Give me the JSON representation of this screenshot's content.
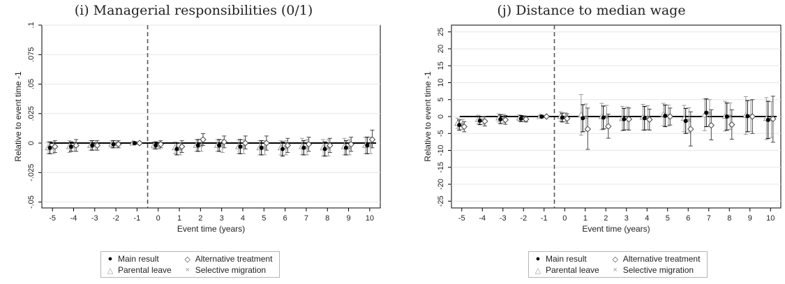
{
  "legend": {
    "items": [
      {
        "label": "Main result",
        "symbol": "●",
        "color": "#000000"
      },
      {
        "label": "Alternative treatment",
        "symbol": "◇",
        "color": "#444444"
      },
      {
        "label": "Parental leave",
        "symbol": "△",
        "color": "#9a9a9a"
      },
      {
        "label": "Selective migration",
        "symbol": "×",
        "color": "#9a9a9a"
      }
    ]
  },
  "chart_data": [
    {
      "type": "scatter",
      "title": "(i) Managerial responsibilities (0/1)",
      "xlabel": "Event time (years)",
      "ylabel": "Relative to event time -1",
      "x": [
        -5,
        -4,
        -3,
        -2,
        -1,
        0,
        1,
        2,
        3,
        4,
        5,
        6,
        7,
        8,
        9,
        10
      ],
      "xticks": [
        "-5",
        "-4",
        "-3",
        "-2",
        "-1",
        "0",
        "1",
        "2",
        "3",
        "4",
        "5",
        "6",
        "7",
        "8",
        "9",
        "10"
      ],
      "ylim": [
        -0.055,
        0.1
      ],
      "yticks": [
        {
          "v": -0.05,
          "label": "-.05"
        },
        {
          "v": -0.025,
          "label": "-.025"
        },
        {
          "v": 0,
          "label": "0"
        },
        {
          "v": 0.025,
          "label": ".025"
        },
        {
          "v": 0.05,
          "label": ".05"
        },
        {
          "v": 0.075,
          "label": ".075"
        },
        {
          "v": 0.1,
          "label": ".1"
        }
      ],
      "grid": true,
      "event_line_x": -0.5,
      "series": [
        {
          "name": "Main result",
          "values": [
            -0.004,
            -0.003,
            -0.002,
            -0.001,
            0,
            -0.002,
            -0.005,
            -0.002,
            -0.002,
            -0.003,
            -0.004,
            -0.005,
            -0.004,
            -0.005,
            -0.004,
            -0.002
          ],
          "ci_low": [
            -0.009,
            -0.007,
            -0.006,
            -0.004,
            -0.001,
            -0.005,
            -0.01,
            -0.007,
            -0.007,
            -0.009,
            -0.01,
            -0.011,
            -0.01,
            -0.011,
            -0.01,
            -0.009
          ],
          "ci_high": [
            0.001,
            0.001,
            0.002,
            0.002,
            0.001,
            0.001,
            0,
            0.003,
            0.003,
            0.003,
            0.002,
            0.001,
            0.002,
            0.001,
            0.002,
            0.005
          ]
        },
        {
          "name": "Alternative treatment",
          "values": [
            -0.003,
            -0.002,
            -0.002,
            -0.001,
            0,
            -0.001,
            -0.003,
            0.003,
            0.001,
            0,
            0,
            -0.002,
            -0.001,
            -0.002,
            -0.001,
            0.003
          ],
          "ci_low": [
            -0.008,
            -0.007,
            -0.006,
            -0.004,
            -0.001,
            -0.004,
            -0.008,
            -0.002,
            -0.004,
            -0.005,
            -0.006,
            -0.008,
            -0.007,
            -0.008,
            -0.007,
            -0.004
          ],
          "ci_high": [
            0.002,
            0.003,
            0.002,
            0.002,
            0.001,
            0.002,
            0.002,
            0.008,
            0.006,
            0.006,
            0.006,
            0.004,
            0.005,
            0.004,
            0.005,
            0.011
          ]
        },
        {
          "name": "Parental leave",
          "values": [
            -0.004,
            -0.003,
            -0.002,
            -0.001,
            0,
            -0.002,
            -0.004,
            -0.002,
            -0.002,
            -0.003,
            -0.004,
            -0.004,
            -0.003,
            -0.004,
            -0.003,
            -0.002
          ],
          "ci_low": [
            -0.009,
            -0.008,
            -0.006,
            -0.004,
            -0.001,
            -0.005,
            -0.009,
            -0.007,
            -0.007,
            -0.009,
            -0.01,
            -0.01,
            -0.01,
            -0.011,
            -0.01,
            -0.009
          ],
          "ci_high": [
            0.001,
            0.002,
            0.002,
            0.002,
            0.001,
            0.001,
            0.001,
            0.003,
            0.003,
            0.003,
            0.002,
            0.002,
            0.004,
            0.003,
            0.004,
            0.005
          ]
        },
        {
          "name": "Selective migration",
          "values": [
            -0.004,
            -0.003,
            -0.002,
            -0.001,
            0,
            -0.002,
            -0.005,
            -0.002,
            -0.002,
            -0.003,
            -0.004,
            -0.004,
            -0.004,
            -0.004,
            -0.004,
            -0.002
          ],
          "ci_low": [
            -0.009,
            -0.007,
            -0.006,
            -0.004,
            -0.001,
            -0.005,
            -0.01,
            -0.007,
            -0.008,
            -0.009,
            -0.01,
            -0.01,
            -0.01,
            -0.011,
            -0.01,
            -0.009
          ],
          "ci_high": [
            0.001,
            0.001,
            0.002,
            0.002,
            0.001,
            0.001,
            0,
            0.003,
            0.003,
            0.003,
            0.002,
            0.002,
            0.003,
            0.003,
            0.003,
            0.005
          ]
        }
      ]
    },
    {
      "type": "scatter",
      "title": "(j) Distance to median wage",
      "xlabel": "Event time (years)",
      "ylabel": "Relative to event time -1",
      "x": [
        -5,
        -4,
        -3,
        -2,
        -1,
        0,
        1,
        2,
        3,
        4,
        5,
        6,
        7,
        8,
        9,
        10
      ],
      "xticks": [
        "-5",
        "-4",
        "-3",
        "-2",
        "-1",
        "0",
        "1",
        "2",
        "3",
        "4",
        "5",
        "6",
        "7",
        "8",
        "9",
        "10"
      ],
      "ylim": [
        -27,
        27
      ],
      "yticks": [
        {
          "v": -25,
          "label": "-25"
        },
        {
          "v": -20,
          "label": "-20"
        },
        {
          "v": -15,
          "label": "-15"
        },
        {
          "v": -10,
          "label": "-10"
        },
        {
          "v": -5,
          "label": "-5"
        },
        {
          "v": 0,
          "label": "0"
        },
        {
          "v": 5,
          "label": "5"
        },
        {
          "v": 10,
          "label": "10"
        },
        {
          "v": 15,
          "label": "15"
        },
        {
          "v": 20,
          "label": "20"
        },
        {
          "v": 25,
          "label": "25"
        }
      ],
      "grid": true,
      "event_line_x": -0.5,
      "series": [
        {
          "name": "Main result",
          "values": [
            -2.5,
            -1.2,
            -0.8,
            -0.6,
            0,
            -0.3,
            -0.5,
            -0.3,
            -0.8,
            -0.5,
            0.2,
            -1.3,
            1.1,
            0,
            0.1,
            -1.0
          ],
          "ci_low": [
            -4.0,
            -2.4,
            -2.1,
            -1.5,
            -0.3,
            -1.6,
            -4.5,
            -3.7,
            -4.0,
            -4.0,
            -3.0,
            -5.0,
            -3.0,
            -4.0,
            -4.5,
            -6.5
          ],
          "ci_high": [
            -1.0,
            0,
            0.5,
            0.3,
            0.3,
            1.0,
            3.5,
            3.1,
            2.4,
            3.0,
            3.4,
            2.4,
            5.2,
            4.0,
            4.7,
            4.5
          ]
        },
        {
          "name": "Alternative treatment",
          "values": [
            -3.0,
            -1.4,
            -1.0,
            -0.8,
            0,
            -0.6,
            -3.7,
            -2.9,
            -0.8,
            -0.9,
            0,
            -3.7,
            -2.6,
            -2.4,
            0,
            -0.7
          ],
          "ci_low": [
            -4.5,
            -2.8,
            -2.3,
            -1.6,
            -0.3,
            -2.0,
            -9.7,
            -6.4,
            -4.0,
            -4.0,
            -2.5,
            -8.7,
            -6.9,
            -6.7,
            -5.0,
            -7.6
          ],
          "ci_high": [
            -1.5,
            0,
            0.3,
            0,
            0.3,
            0.8,
            2.5,
            0.7,
            2.5,
            2.2,
            2.5,
            1.4,
            2.0,
            2.0,
            5.0,
            6.0
          ]
        },
        {
          "name": "Parental leave",
          "values": [
            -2.0,
            -0.9,
            -0.4,
            -0.4,
            0,
            0,
            0.5,
            0,
            -0.6,
            -0.2,
            0.6,
            -0.6,
            0.5,
            0.1,
            0.3,
            -0.6
          ],
          "ci_low": [
            -3.5,
            -2.2,
            -1.6,
            -1.3,
            -0.3,
            -1.4,
            -5.5,
            -3.9,
            -4.2,
            -4.0,
            -2.7,
            -4.5,
            -4.2,
            -4.3,
            -5.3,
            -6.8
          ],
          "ci_high": [
            -0.5,
            0.4,
            0.8,
            0.5,
            0.3,
            1.4,
            6.5,
            3.9,
            3.0,
            3.6,
            3.9,
            3.3,
            5.2,
            4.5,
            5.9,
            5.6
          ]
        },
        {
          "name": "Selective migration",
          "values": [
            -2.3,
            -1.1,
            -0.6,
            -0.6,
            0,
            -0.2,
            -0.3,
            -0.1,
            -0.5,
            -0.3,
            0.3,
            -1.1,
            1.0,
            0.1,
            0.2,
            -0.9
          ],
          "ci_low": [
            -3.8,
            -2.3,
            -1.9,
            -1.5,
            -0.3,
            -1.5,
            -4.3,
            -3.5,
            -3.8,
            -3.8,
            -2.8,
            -4.8,
            -3.0,
            -3.8,
            -4.4,
            -6.2
          ],
          "ci_high": [
            -0.8,
            0.1,
            0.7,
            0.3,
            0.3,
            1.1,
            3.7,
            3.3,
            2.8,
            3.2,
            3.4,
            2.6,
            5.0,
            4.0,
            4.8,
            4.4
          ]
        }
      ]
    }
  ]
}
